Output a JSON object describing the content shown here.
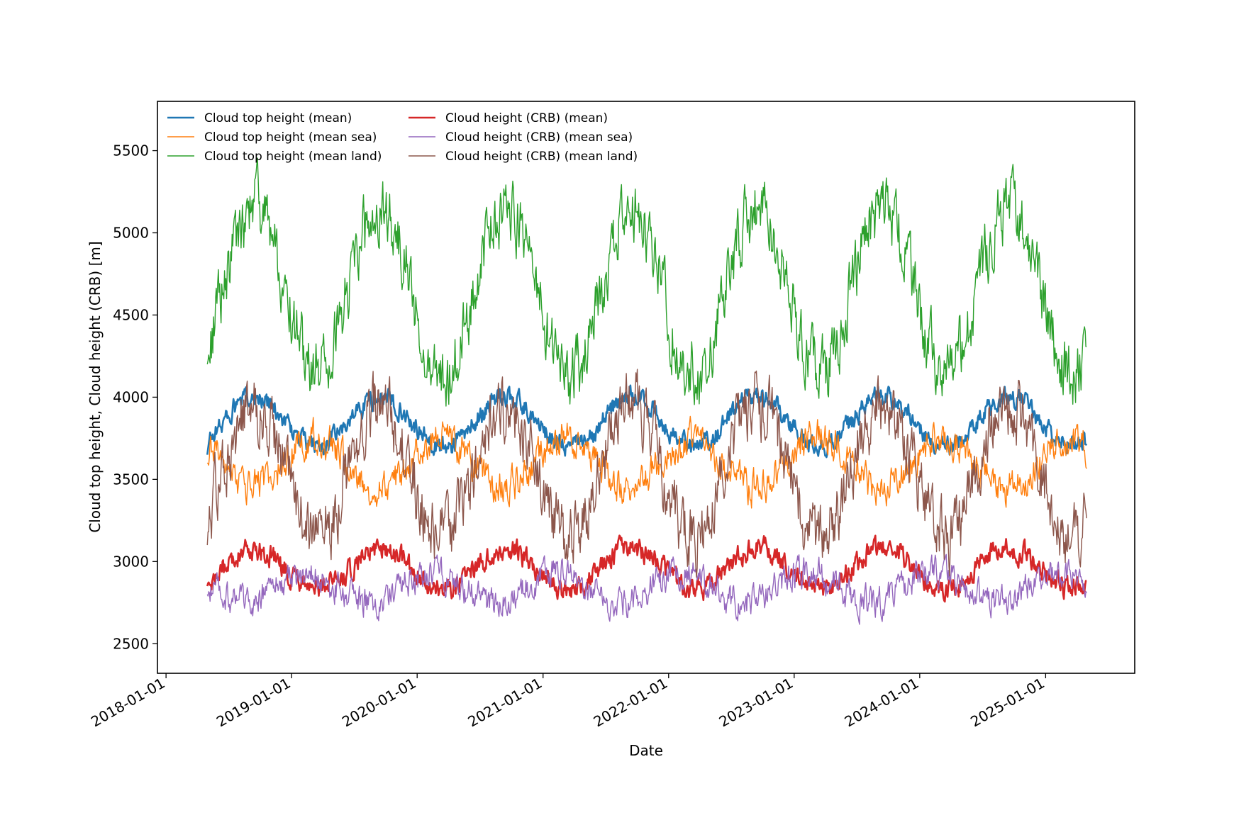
{
  "chart_data": {
    "type": "line",
    "xlabel": "Date",
    "ylabel": "Cloud top height, Cloud height (CRB) [m]",
    "xlim": [
      "2017-12-07",
      "2025-09-17"
    ],
    "ylim": [
      2320,
      5800
    ],
    "x_ticks": [
      "2018-01-01",
      "2019-01-01",
      "2020-01-01",
      "2021-01-01",
      "2022-01-01",
      "2023-01-01",
      "2024-01-01",
      "2025-01-01"
    ],
    "y_ticks": [
      2500,
      3000,
      3500,
      4000,
      4500,
      5000,
      5500
    ],
    "x_start": "2018-05-01",
    "x_end": "2025-05-01",
    "legend_position": "upper-left",
    "legend_columns": 2,
    "grid": false,
    "series": [
      {
        "name": "Cloud top height (mean)",
        "color": "#1f77b4",
        "line_width": "thick",
        "min_doy": 75,
        "min_value": 3700,
        "max_value": 4000,
        "start_value": 3650,
        "end_value": 3700,
        "noise": 50
      },
      {
        "name": "Cloud top height (mean sea)",
        "color": "#ff7f0e",
        "line_width": "thin",
        "min_doy": 250,
        "min_value": 3450,
        "max_value": 3750,
        "start_value": 3600,
        "end_value": 3550,
        "noise": 85
      },
      {
        "name": "Cloud top height (mean land)",
        "color": "#2ca02c",
        "line_width": "thin",
        "min_doy": 75,
        "min_value": 4150,
        "max_value": 5150,
        "start_value": 4200,
        "end_value": 4300,
        "noise": 160
      },
      {
        "name": "Cloud height (CRB) (mean)",
        "color": "#d62728",
        "line_width": "thick",
        "min_doy": 75,
        "min_value": 2830,
        "max_value": 3080,
        "start_value": 2850,
        "end_value": 2880,
        "noise": 55
      },
      {
        "name": "Cloud height (CRB) (mean sea)",
        "color": "#9467bd",
        "line_width": "thin",
        "min_doy": 220,
        "min_value": 2750,
        "max_value": 2930,
        "start_value": 2800,
        "end_value": 2800,
        "noise": 75
      },
      {
        "name": "Cloud height (CRB) (mean land)",
        "color": "#8c564b",
        "line_width": "thin",
        "min_doy": 75,
        "min_value": 3150,
        "max_value": 3950,
        "start_value": 3100,
        "end_value": 3250,
        "noise": 160
      }
    ]
  }
}
